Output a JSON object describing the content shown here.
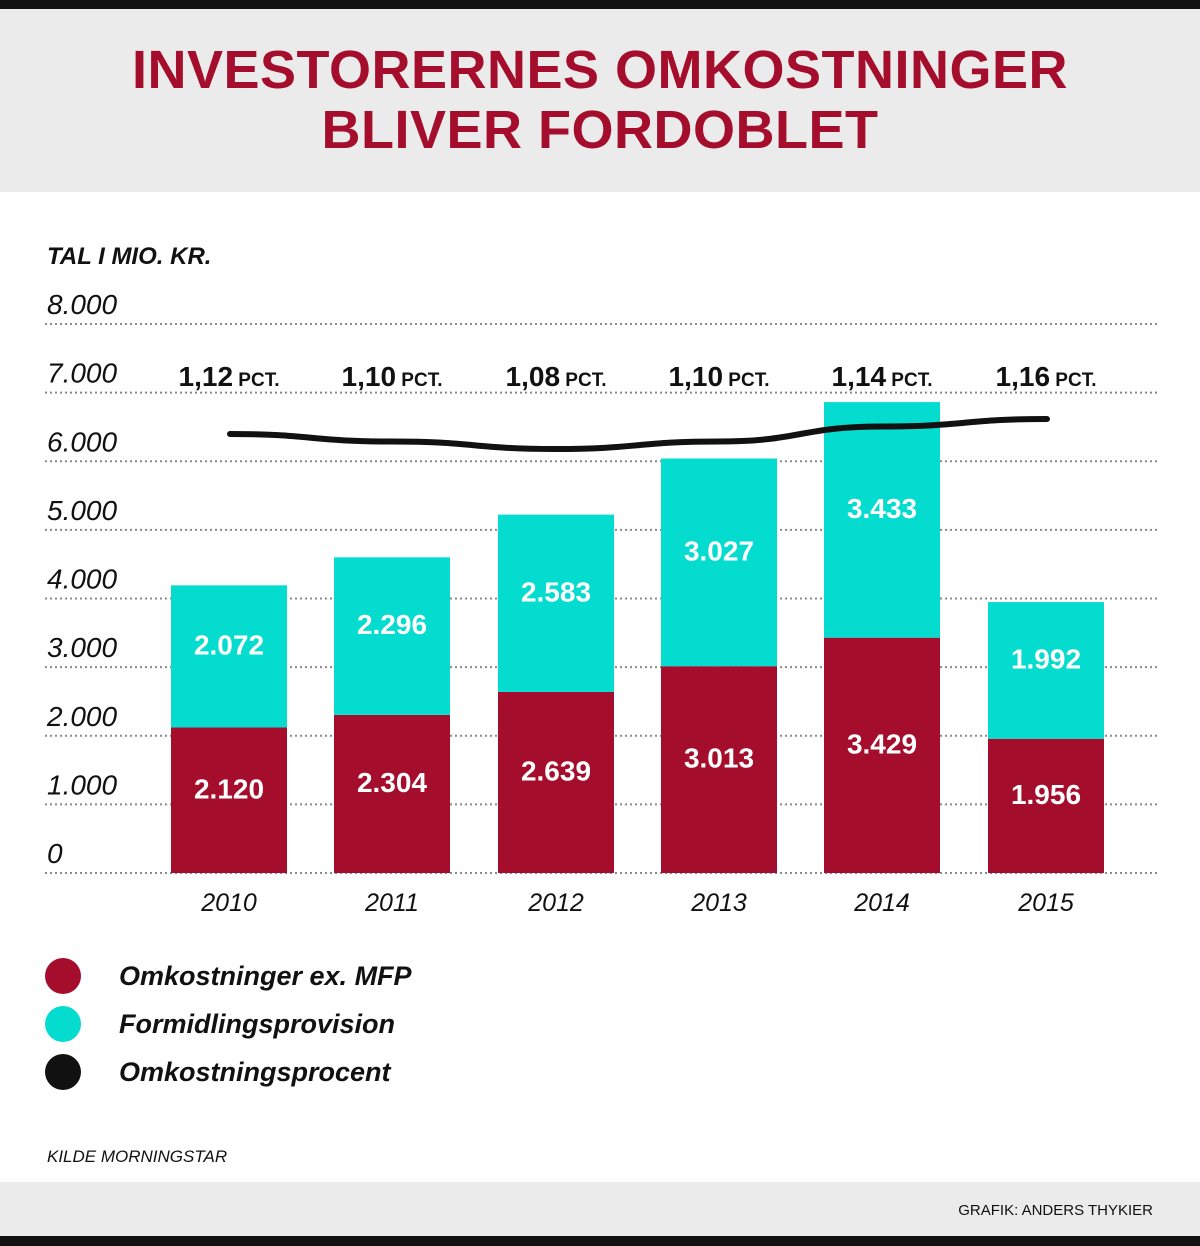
{
  "title_lines": [
    "INVESTORERNES OMKOSTNINGER",
    "BLIVER FORDOBLET"
  ],
  "source": "KILDE MORNINGSTAR",
  "credit": "GRAFIK: ANDERS THYKIER",
  "colors": {
    "crimson": "#a50d2d",
    "teal": "#05dcd0",
    "line": "#111111",
    "grid": "#8a8a8a",
    "header_bg": "#ebebeb"
  },
  "legend": [
    {
      "label": "Omkostninger ex. MFP",
      "color": "#a50d2d"
    },
    {
      "label": "Formidlingsprovision",
      "color": "#05dcd0"
    },
    {
      "label": "Omkostningsprocent",
      "color": "#111111"
    }
  ],
  "chart_data": {
    "type": "bar",
    "stacked": true,
    "ylabel": "TAL I MIO. KR.",
    "ylim": [
      0,
      8000
    ],
    "yticks": [
      0,
      1000,
      2000,
      3000,
      4000,
      5000,
      6000,
      7000,
      8000
    ],
    "ytick_labels": [
      "0",
      "1.000",
      "2.000",
      "3.000",
      "4.000",
      "5.000",
      "6.000",
      "7.000",
      "8.000"
    ],
    "grid": "horizontal dotted",
    "categories": [
      "2010",
      "2011",
      "2012",
      "2013",
      "2014",
      "2015"
    ],
    "series": [
      {
        "name": "Omkostninger ex. MFP",
        "values": [
          2120,
          2304,
          2639,
          3013,
          3429,
          1956
        ],
        "labels": [
          "2.120",
          "2.304",
          "2.639",
          "3.013",
          "3.429",
          "1.956"
        ]
      },
      {
        "name": "Formidlingsprovision",
        "values": [
          2072,
          2296,
          2583,
          3027,
          3433,
          1992
        ],
        "labels": [
          "2.072",
          "2.296",
          "2.583",
          "3.027",
          "3.433",
          "1.992"
        ]
      }
    ],
    "line_series": {
      "name": "Omkostningsprocent",
      "values": [
        1.12,
        1.1,
        1.08,
        1.1,
        1.14,
        1.16
      ],
      "labels": [
        "1,12",
        "1,10",
        "1,08",
        "1,10",
        "1,14",
        "1,16"
      ],
      "unit": "PCT."
    }
  }
}
